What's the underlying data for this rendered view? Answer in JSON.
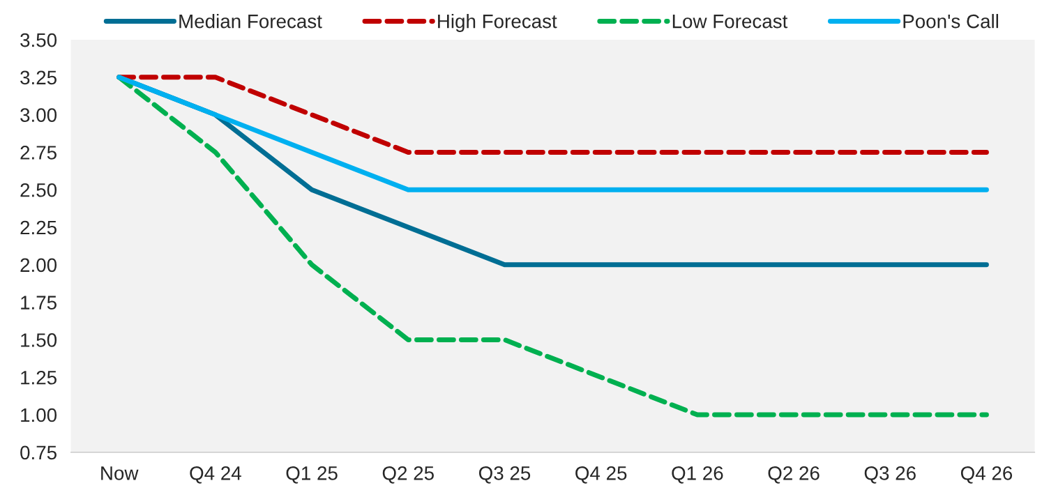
{
  "chart_data": {
    "type": "line",
    "categories": [
      "Now",
      "Q4 24",
      "Q1 25",
      "Q2 25",
      "Q3 25",
      "Q4 25",
      "Q1 26",
      "Q2 26",
      "Q3 26",
      "Q4 26"
    ],
    "series": [
      {
        "name": "Median Forecast",
        "color": "#006e94",
        "line_style": "solid",
        "values": [
          3.25,
          3.0,
          2.5,
          2.25,
          2.0,
          2.0,
          2.0,
          2.0,
          2.0,
          2.0
        ]
      },
      {
        "name": "High Forecast",
        "color": "#c00000",
        "line_style": "dashed",
        "values": [
          3.25,
          3.25,
          3.0,
          2.75,
          2.75,
          2.75,
          2.75,
          2.75,
          2.75,
          2.75
        ]
      },
      {
        "name": "Low Forecast",
        "color": "#00b050",
        "line_style": "dashed",
        "values": [
          3.25,
          2.75,
          2.0,
          1.5,
          1.5,
          1.25,
          1.0,
          1.0,
          1.0,
          1.0
        ]
      },
      {
        "name": "Poon's Call",
        "color": "#00b0f0",
        "line_style": "solid",
        "values": [
          3.25,
          3.0,
          2.75,
          2.5,
          2.5,
          2.5,
          2.5,
          2.5,
          2.5,
          2.5
        ]
      }
    ],
    "ylim": [
      0.75,
      3.5
    ],
    "yticks": [
      {
        "value": 0.75,
        "label": "0.75"
      },
      {
        "value": 1.0,
        "label": "1.00"
      },
      {
        "value": 1.25,
        "label": "1.25"
      },
      {
        "value": 1.5,
        "label": "1.50"
      },
      {
        "value": 1.75,
        "label": "1.75"
      },
      {
        "value": 2.0,
        "label": "2.00"
      },
      {
        "value": 2.25,
        "label": "2.25"
      },
      {
        "value": 2.5,
        "label": "2.50"
      },
      {
        "value": 2.75,
        "label": "2.75"
      },
      {
        "value": 3.0,
        "label": "3.00"
      },
      {
        "value": 3.25,
        "label": "3.25"
      },
      {
        "value": 3.5,
        "label": "3.50"
      }
    ],
    "grid": false,
    "legend": "top",
    "marker": "none"
  }
}
